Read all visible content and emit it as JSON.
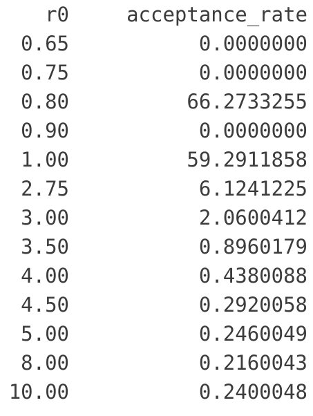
{
  "table": {
    "columns": [
      "r0",
      "acceptance_rate"
    ],
    "rows": [
      {
        "r0": "0.65",
        "acceptance_rate": "0.0000000"
      },
      {
        "r0": "0.75",
        "acceptance_rate": "0.0000000"
      },
      {
        "r0": "0.80",
        "acceptance_rate": "66.2733255"
      },
      {
        "r0": "0.90",
        "acceptance_rate": "0.0000000"
      },
      {
        "r0": "1.00",
        "acceptance_rate": "59.2911858"
      },
      {
        "r0": "2.75",
        "acceptance_rate": "6.1241225"
      },
      {
        "r0": "3.00",
        "acceptance_rate": "2.0600412"
      },
      {
        "r0": "3.50",
        "acceptance_rate": "0.8960179"
      },
      {
        "r0": "4.00",
        "acceptance_rate": "0.4380088"
      },
      {
        "r0": "4.50",
        "acceptance_rate": "0.2920058"
      },
      {
        "r0": "5.00",
        "acceptance_rate": "0.2460049"
      },
      {
        "r0": "8.00",
        "acceptance_rate": "0.2160043"
      },
      {
        "r0": "10.00",
        "acceptance_rate": "0.2400048"
      }
    ]
  }
}
